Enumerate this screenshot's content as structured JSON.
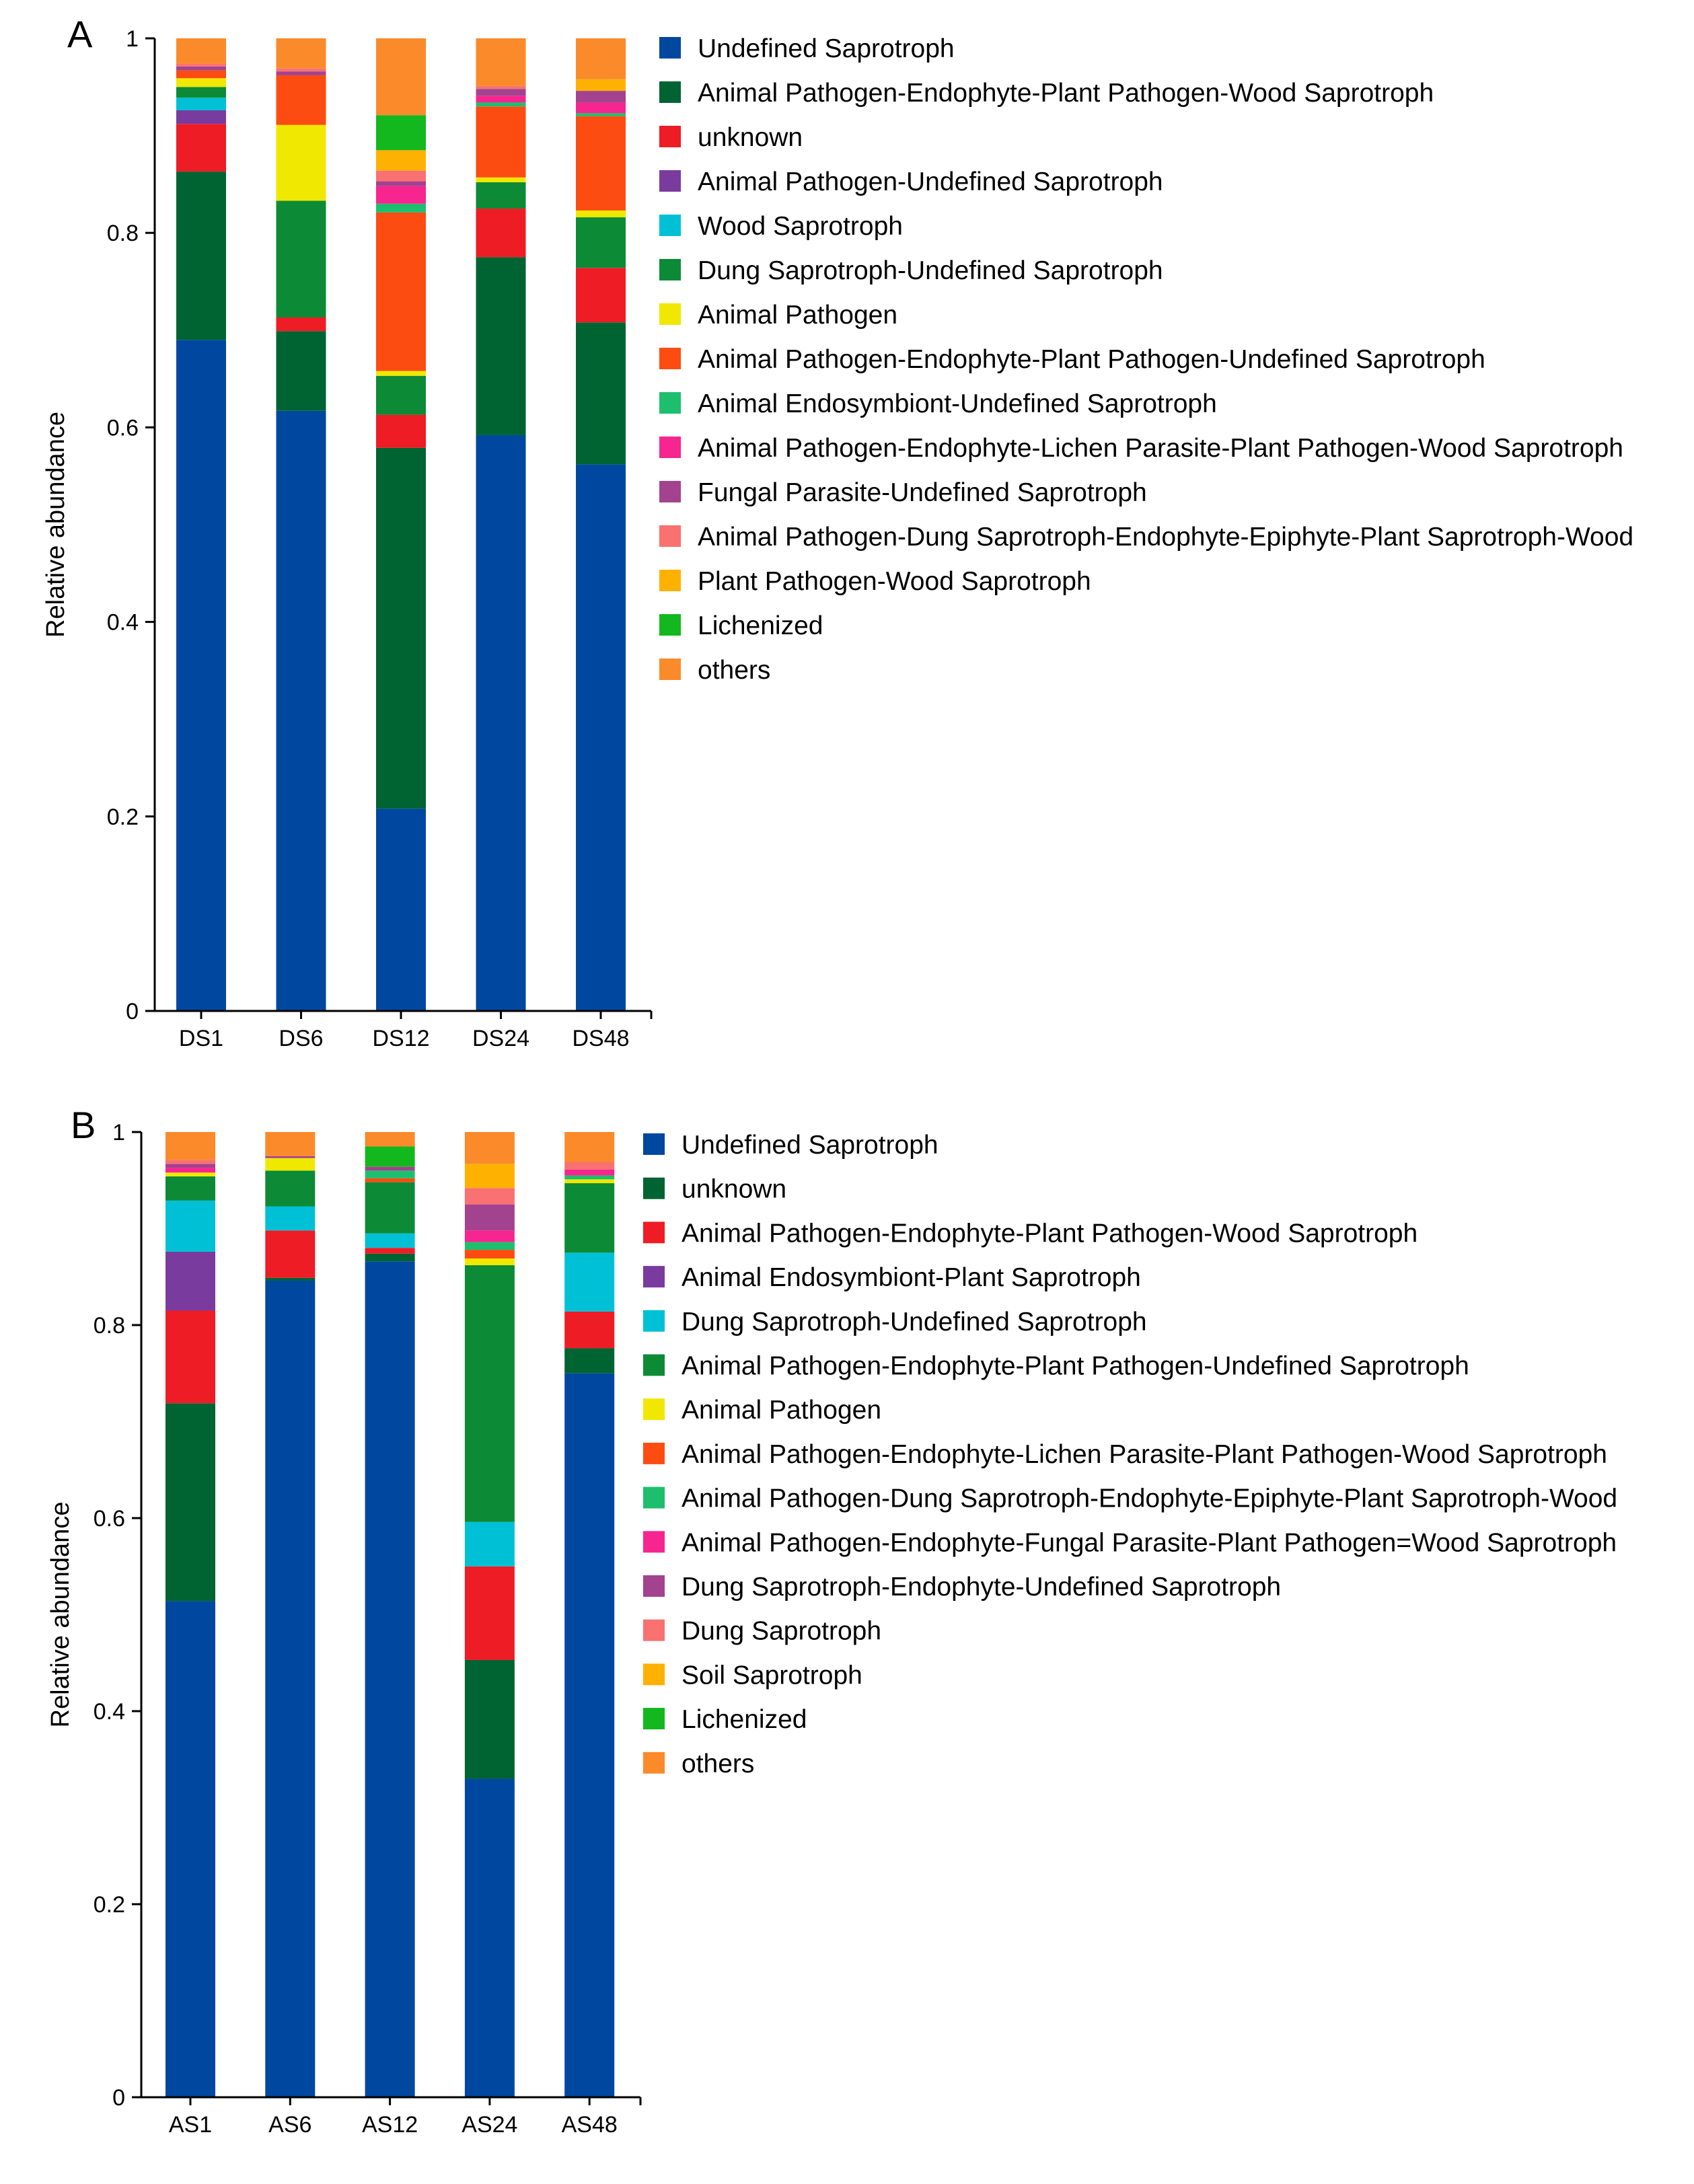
{
  "chart_data": [
    {
      "panel_label": "A",
      "type": "stacked-bar",
      "ylabel": "Relative abundance",
      "ylim": [
        0,
        1
      ],
      "yticks": [
        "0",
        "0.2",
        "0.4",
        "0.6",
        "0.8",
        "1"
      ],
      "categories": [
        "DS1",
        "DS6",
        "DS12",
        "DS24",
        "DS48"
      ],
      "series": [
        {
          "name": "Undefined Saprotroph",
          "color": "#0047a0",
          "values": [
            0.69,
            0.617,
            0.208,
            0.592,
            0.562
          ]
        },
        {
          "name": "Animal Pathogen-Endophyte-Plant Pathogen-Wood Saprotroph",
          "color": "#006332",
          "values": [
            0.173,
            0.082,
            0.371,
            0.183,
            0.146
          ]
        },
        {
          "name": "unknown",
          "color": "#ee1c24",
          "values": [
            0.049,
            0.014,
            0.034,
            0.05,
            0.056
          ]
        },
        {
          "name": "Animal Pathogen-Undefined Saprotroph",
          "color": "#7a3b9e",
          "values": [
            0.014,
            0.0,
            0.0,
            0.0,
            0.0
          ]
        },
        {
          "name": "Wood Saprotroph",
          "color": "#00c0d6",
          "values": [
            0.013,
            0.0,
            0.0,
            0.0,
            0.0
          ]
        },
        {
          "name": "Dung Saprotroph-Undefined Saprotroph",
          "color": "#0c8a36",
          "values": [
            0.011,
            0.12,
            0.04,
            0.027,
            0.052
          ]
        },
        {
          "name": "Animal Pathogen",
          "color": "#f0e800",
          "values": [
            0.009,
            0.078,
            0.005,
            0.005,
            0.007
          ]
        },
        {
          "name": "Animal Pathogen-Endophyte-Plant Pathogen-Undefined Saprotroph",
          "color": "#fc4c12",
          "values": [
            0.008,
            0.051,
            0.163,
            0.073,
            0.097
          ]
        },
        {
          "name": "Animal Endosymbiont-Undefined Saprotroph",
          "color": "#1dbf6e",
          "values": [
            0.0,
            0.0,
            0.009,
            0.004,
            0.003
          ]
        },
        {
          "name": "Animal Pathogen-Endophyte-Lichen Parasite-Plant Pathogen-Wood Saprotroph",
          "color": "#f7258f",
          "values": [
            0.0,
            0.0,
            0.018,
            0.007,
            0.011
          ]
        },
        {
          "name": "Fungal Parasite-Undefined Saprotroph",
          "color": "#a3428f",
          "values": [
            0.004,
            0.004,
            0.005,
            0.007,
            0.012
          ]
        },
        {
          "name": "Animal Pathogen-Dung Saprotroph-Endophyte-Epiphyte-Plant Saprotroph-Wood",
          "color": "#f97171",
          "values": [
            0.003,
            0.003,
            0.011,
            0.003,
            0.0
          ]
        },
        {
          "name": "Plant Pathogen-Wood Saprotroph",
          "color": "#ffb100",
          "values": [
            0.0,
            0.0,
            0.021,
            0.0,
            0.012
          ]
        },
        {
          "name": "Lichenized",
          "color": "#13b81e",
          "values": [
            0.0,
            0.0,
            0.036,
            0.0,
            0.0
          ]
        },
        {
          "name": "others",
          "color": "#fb8a2b",
          "values": [
            0.026,
            0.031,
            0.079,
            0.049,
            0.042
          ]
        }
      ]
    },
    {
      "panel_label": "B",
      "type": "stacked-bar",
      "ylabel": "Relative abundance",
      "ylim": [
        0,
        1
      ],
      "yticks": [
        "0",
        "0.2",
        "0.4",
        "0.6",
        "0.8",
        "1"
      ],
      "categories": [
        "AS1",
        "AS6",
        "AS12",
        "AS24",
        "AS48"
      ],
      "series": [
        {
          "name": "Undefined Saprotroph",
          "color": "#0047a0",
          "values": [
            0.514,
            0.846,
            0.866,
            0.33,
            0.75
          ]
        },
        {
          "name": "unknown",
          "color": "#006332",
          "values": [
            0.205,
            0.003,
            0.008,
            0.123,
            0.026
          ]
        },
        {
          "name": "Animal Pathogen-Endophyte-Plant Pathogen-Wood Saprotroph",
          "color": "#ee1c24",
          "values": [
            0.096,
            0.049,
            0.006,
            0.097,
            0.038
          ]
        },
        {
          "name": "Animal Endosymbiont-Plant Saprotroph",
          "color": "#7a3b9e",
          "values": [
            0.061,
            0.0,
            0.0,
            0.0,
            0.0
          ]
        },
        {
          "name": "Dung Saprotroph-Undefined Saprotroph",
          "color": "#00c0d6",
          "values": [
            0.053,
            0.025,
            0.015,
            0.046,
            0.061
          ]
        },
        {
          "name": "Animal Pathogen-Endophyte-Plant Pathogen-Undefined Saprotroph",
          "color": "#0c8a36",
          "values": [
            0.025,
            0.037,
            0.053,
            0.266,
            0.072
          ]
        },
        {
          "name": "Animal Pathogen",
          "color": "#f0e800",
          "values": [
            0.004,
            0.013,
            0.0,
            0.007,
            0.004
          ]
        },
        {
          "name": "Animal Pathogen-Endophyte-Lichen Parasite-Plant Pathogen-Wood Saprotroph",
          "color": "#fc4c12",
          "values": [
            0.0,
            0.0,
            0.004,
            0.009,
            0.0
          ]
        },
        {
          "name": "Animal Pathogen-Dung Saprotroph-Endophyte-Epiphyte-Plant Saprotroph-Wood",
          "color": "#1dbf6e",
          "values": [
            0.0,
            0.0,
            0.008,
            0.008,
            0.004
          ]
        },
        {
          "name": "Animal Pathogen-Endophyte-Fungal Parasite-Plant Pathogen=Wood Saprotroph",
          "color": "#f7258f",
          "values": [
            0.005,
            0.0,
            0.0,
            0.012,
            0.006
          ]
        },
        {
          "name": "Dung Saprotroph-Endophyte-Undefined Saprotroph",
          "color": "#a3428f",
          "values": [
            0.004,
            0.002,
            0.004,
            0.027,
            0.0
          ]
        },
        {
          "name": "Dung Saprotroph",
          "color": "#f97171",
          "values": [
            0.004,
            0.0,
            0.0,
            0.017,
            0.008
          ]
        },
        {
          "name": "Soil Saprotroph",
          "color": "#ffb100",
          "values": [
            0.0,
            0.0,
            0.0,
            0.025,
            0.0
          ]
        },
        {
          "name": "Lichenized",
          "color": "#13b81e",
          "values": [
            0.0,
            0.0,
            0.021,
            0.0,
            0.0
          ]
        },
        {
          "name": "others",
          "color": "#fb8a2b",
          "values": [
            0.029,
            0.025,
            0.015,
            0.033,
            0.031
          ]
        }
      ]
    }
  ]
}
